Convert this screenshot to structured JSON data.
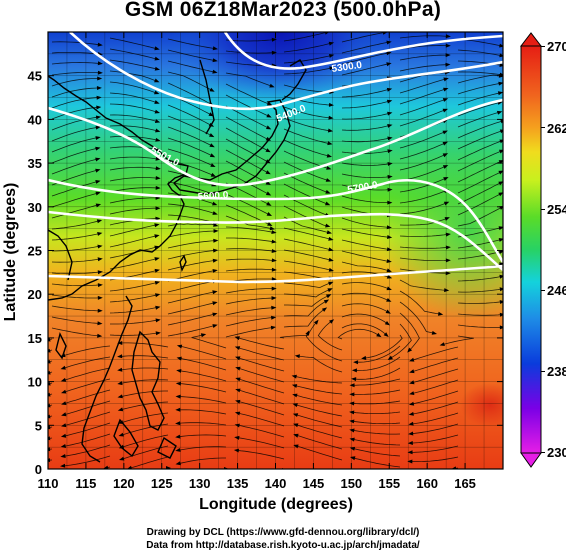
{
  "title": "GSM 06Z18Mar2023 (500.0hPa)",
  "map": {
    "lon_range": [
      110,
      170
    ],
    "lat_range": [
      0,
      50
    ],
    "lon_ticks": [
      110,
      115,
      120,
      125,
      130,
      135,
      140,
      145,
      150,
      155,
      160,
      165
    ],
    "lat_ticks": [
      0,
      5,
      10,
      15,
      20,
      25,
      30,
      35,
      40,
      45
    ],
    "xlabel": "Longitude (degrees)",
    "ylabel": "Latitude  (degrees)",
    "field": "temperature",
    "geopotential_contours": [
      {
        "label": "5300.0",
        "level": 5300
      },
      {
        "label": "5400.0",
        "level": 5400
      },
      {
        "label": "5501.0",
        "level": 5501
      },
      {
        "label": "5600.0",
        "level": 5600
      },
      {
        "label": "5700.0",
        "level": 5700
      }
    ]
  },
  "colorbar": {
    "labels": [
      "270",
      "262",
      "254",
      "246",
      "238",
      "230"
    ],
    "range": [
      230,
      270
    ],
    "colors": [
      "#e61ee6",
      "#7a00e6",
      "#0a3cdc",
      "#1e8ce6",
      "#14d2dc",
      "#28d264",
      "#64dc1e",
      "#c8f01e",
      "#f0dc1e",
      "#f5961e",
      "#f0641e",
      "#e61e14"
    ]
  },
  "credits": {
    "line1": "Drawing by DCL (https://www.gfd-dennou.org/library/dcl/)",
    "line2": "Data from http://database.rish.kyoto-u.ac.jp/arch/jmadata/"
  }
}
